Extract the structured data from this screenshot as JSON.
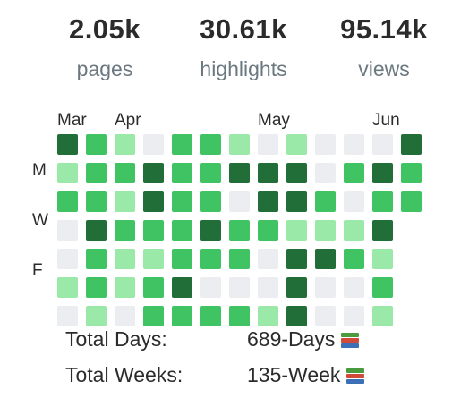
{
  "stats": [
    {
      "value": "2.05k",
      "label": "pages"
    },
    {
      "value": "30.61k",
      "label": "highlights"
    },
    {
      "value": "95.14k",
      "label": "views"
    }
  ],
  "heatmap": {
    "months": [
      "Mar",
      "Apr",
      "May",
      "Jun"
    ],
    "day_labels": [
      "M",
      "W",
      "F"
    ],
    "palette": {
      "0": "#ebedf0",
      "1": "#9be9a8",
      "2": "#40c463",
      "3": "#30a14e",
      "4": "#216e39"
    },
    "weeks": [
      [
        4,
        1,
        2,
        0,
        0,
        1,
        0
      ],
      [
        2,
        2,
        2,
        4,
        2,
        2,
        1
      ],
      [
        1,
        2,
        1,
        2,
        1,
        1,
        0
      ],
      [
        0,
        4,
        4,
        2,
        1,
        2,
        2
      ],
      [
        2,
        2,
        2,
        2,
        2,
        4,
        2
      ],
      [
        2,
        2,
        2,
        4,
        2,
        0,
        2
      ],
      [
        1,
        4,
        0,
        2,
        2,
        0,
        2
      ],
      [
        0,
        4,
        4,
        2,
        0,
        0,
        1
      ],
      [
        1,
        4,
        4,
        1,
        4,
        4,
        4
      ],
      [
        0,
        0,
        2,
        1,
        4,
        0,
        0
      ],
      [
        0,
        2,
        0,
        1,
        2,
        0,
        0
      ],
      [
        0,
        4,
        2,
        4,
        1,
        2,
        1
      ],
      [
        4,
        2,
        2,
        null,
        null,
        null,
        null
      ]
    ]
  },
  "totals": {
    "days_label": "Total Days:",
    "days_value": "689-Days",
    "weeks_label": "Total Weeks:",
    "weeks_value": "135-Week",
    "icon": "books-icon"
  }
}
